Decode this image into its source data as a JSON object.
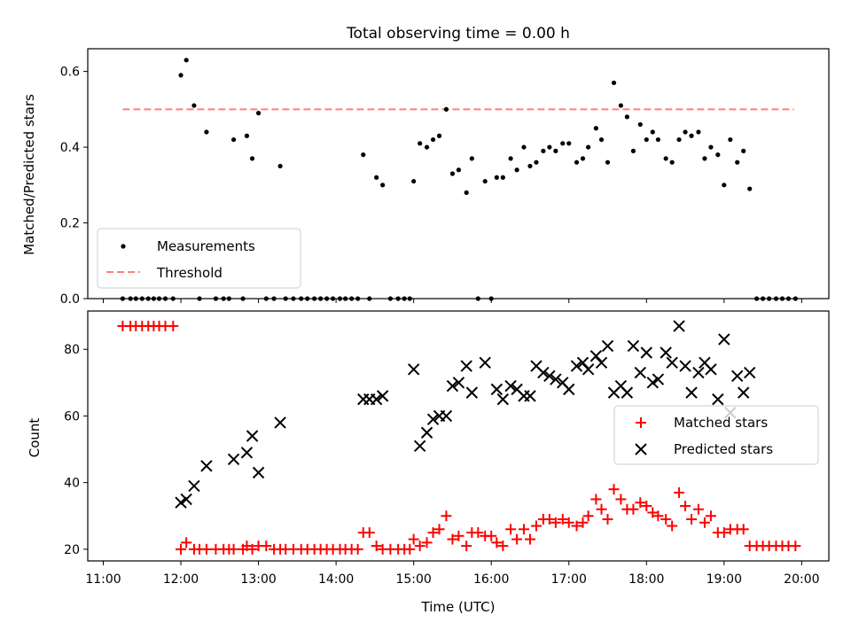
{
  "chart_data": [
    {
      "type": "scatter",
      "title": "Total observing time = 0.00 h",
      "xlabel": "",
      "ylabel": "Matched/Predicted stars",
      "xlim": [
        10.8,
        20.35
      ],
      "ylim": [
        0.0,
        0.66
      ],
      "yticks": [
        "0.0",
        "0.2",
        "0.4",
        "0.6"
      ],
      "legend_position": "lower-left",
      "grid": false,
      "threshold": {
        "name": "Threshold",
        "value": 0.5,
        "x": [
          11.25,
          19.9
        ],
        "color": "#ff7f7f"
      },
      "series": [
        {
          "name": "Measurements",
          "color": "#000000",
          "points": [
            [
              11.25,
              0
            ],
            [
              11.35,
              0
            ],
            [
              11.42,
              0
            ],
            [
              11.5,
              0
            ],
            [
              11.58,
              0
            ],
            [
              11.65,
              0
            ],
            [
              11.72,
              0
            ],
            [
              11.8,
              0
            ],
            [
              11.9,
              0
            ],
            [
              12.0,
              0.59
            ],
            [
              12.07,
              0.63
            ],
            [
              12.17,
              0.51
            ],
            [
              12.24,
              0
            ],
            [
              12.33,
              0.44
            ],
            [
              12.45,
              0
            ],
            [
              12.55,
              0
            ],
            [
              12.62,
              0
            ],
            [
              12.68,
              0.42
            ],
            [
              12.8,
              0
            ],
            [
              12.85,
              0.43
            ],
            [
              12.92,
              0.37
            ],
            [
              13.0,
              0.49
            ],
            [
              13.1,
              0
            ],
            [
              13.2,
              0
            ],
            [
              13.28,
              0.35
            ],
            [
              13.35,
              0
            ],
            [
              13.45,
              0
            ],
            [
              13.55,
              0
            ],
            [
              13.63,
              0
            ],
            [
              13.72,
              0
            ],
            [
              13.8,
              0
            ],
            [
              13.88,
              0
            ],
            [
              13.96,
              0
            ],
            [
              14.05,
              0
            ],
            [
              14.12,
              0
            ],
            [
              14.2,
              0
            ],
            [
              14.28,
              0
            ],
            [
              14.35,
              0.38
            ],
            [
              14.43,
              0
            ],
            [
              14.52,
              0.32
            ],
            [
              14.6,
              0.3
            ],
            [
              14.7,
              0
            ],
            [
              14.8,
              0
            ],
            [
              14.88,
              0
            ],
            [
              14.95,
              0
            ],
            [
              15.0,
              0.31
            ],
            [
              15.08,
              0.41
            ],
            [
              15.17,
              0.4
            ],
            [
              15.25,
              0.42
            ],
            [
              15.33,
              0.43
            ],
            [
              15.42,
              0.5
            ],
            [
              15.5,
              0.33
            ],
            [
              15.58,
              0.34
            ],
            [
              15.68,
              0.28
            ],
            [
              15.75,
              0.37
            ],
            [
              15.83,
              0
            ],
            [
              15.92,
              0.31
            ],
            [
              16.0,
              0
            ],
            [
              16.07,
              0.32
            ],
            [
              16.15,
              0.32
            ],
            [
              16.25,
              0.37
            ],
            [
              16.33,
              0.34
            ],
            [
              16.42,
              0.4
            ],
            [
              16.5,
              0.35
            ],
            [
              16.58,
              0.36
            ],
            [
              16.67,
              0.39
            ],
            [
              16.75,
              0.4
            ],
            [
              16.83,
              0.39
            ],
            [
              16.92,
              0.41
            ],
            [
              17.0,
              0.41
            ],
            [
              17.1,
              0.36
            ],
            [
              17.18,
              0.37
            ],
            [
              17.25,
              0.4
            ],
            [
              17.35,
              0.45
            ],
            [
              17.42,
              0.42
            ],
            [
              17.5,
              0.36
            ],
            [
              17.58,
              0.57
            ],
            [
              17.67,
              0.51
            ],
            [
              17.75,
              0.48
            ],
            [
              17.83,
              0.39
            ],
            [
              17.92,
              0.46
            ],
            [
              18.0,
              0.42
            ],
            [
              18.08,
              0.44
            ],
            [
              18.15,
              0.42
            ],
            [
              18.25,
              0.37
            ],
            [
              18.33,
              0.36
            ],
            [
              18.42,
              0.42
            ],
            [
              18.5,
              0.44
            ],
            [
              18.58,
              0.43
            ],
            [
              18.67,
              0.44
            ],
            [
              18.75,
              0.37
            ],
            [
              18.83,
              0.4
            ],
            [
              18.92,
              0.38
            ],
            [
              19.0,
              0.3
            ],
            [
              19.08,
              0.42
            ],
            [
              19.17,
              0.36
            ],
            [
              19.25,
              0.39
            ],
            [
              19.33,
              0.29
            ],
            [
              19.42,
              0
            ],
            [
              19.5,
              0
            ],
            [
              19.58,
              0
            ],
            [
              19.67,
              0
            ],
            [
              19.75,
              0
            ],
            [
              19.83,
              0
            ],
            [
              19.92,
              0
            ]
          ]
        }
      ]
    },
    {
      "type": "scatter",
      "title": "",
      "xlabel": "Time (UTC)",
      "ylabel": "Count",
      "xlim": [
        10.8,
        20.35
      ],
      "ylim": [
        16.5,
        91.5
      ],
      "xticks": [
        "11:00",
        "12:00",
        "13:00",
        "14:00",
        "15:00",
        "16:00",
        "17:00",
        "18:00",
        "19:00",
        "20:00"
      ],
      "yticks": [
        "20",
        "40",
        "60",
        "80"
      ],
      "legend_position": "center-right",
      "grid": false,
      "series": [
        {
          "name": "Matched stars",
          "marker": "plus",
          "color": "#ff0000",
          "points": [
            [
              11.25,
              87
            ],
            [
              11.35,
              87
            ],
            [
              11.42,
              87
            ],
            [
              11.5,
              87
            ],
            [
              11.58,
              87
            ],
            [
              11.65,
              87
            ],
            [
              11.72,
              87
            ],
            [
              11.8,
              87
            ],
            [
              11.9,
              87
            ],
            [
              12.0,
              20
            ],
            [
              12.07,
              22
            ],
            [
              12.17,
              20
            ],
            [
              12.24,
              20
            ],
            [
              12.33,
              20
            ],
            [
              12.45,
              20
            ],
            [
              12.55,
              20
            ],
            [
              12.62,
              20
            ],
            [
              12.68,
              20
            ],
            [
              12.8,
              20
            ],
            [
              12.85,
              21
            ],
            [
              12.92,
              20
            ],
            [
              13.0,
              21
            ],
            [
              13.1,
              21
            ],
            [
              13.2,
              20
            ],
            [
              13.28,
              20
            ],
            [
              13.35,
              20
            ],
            [
              13.45,
              20
            ],
            [
              13.55,
              20
            ],
            [
              13.63,
              20
            ],
            [
              13.72,
              20
            ],
            [
              13.8,
              20
            ],
            [
              13.88,
              20
            ],
            [
              13.96,
              20
            ],
            [
              14.05,
              20
            ],
            [
              14.12,
              20
            ],
            [
              14.2,
              20
            ],
            [
              14.28,
              20
            ],
            [
              14.35,
              25
            ],
            [
              14.43,
              25
            ],
            [
              14.52,
              21
            ],
            [
              14.6,
              20
            ],
            [
              14.7,
              20
            ],
            [
              14.8,
              20
            ],
            [
              14.88,
              20
            ],
            [
              14.95,
              20
            ],
            [
              15.0,
              23
            ],
            [
              15.08,
              21
            ],
            [
              15.17,
              22
            ],
            [
              15.25,
              25
            ],
            [
              15.33,
              26
            ],
            [
              15.42,
              30
            ],
            [
              15.5,
              23
            ],
            [
              15.58,
              24
            ],
            [
              15.68,
              21
            ],
            [
              15.75,
              25
            ],
            [
              15.83,
              25
            ],
            [
              15.92,
              24
            ],
            [
              16.0,
              24
            ],
            [
              16.07,
              22
            ],
            [
              16.15,
              21
            ],
            [
              16.25,
              26
            ],
            [
              16.33,
              23
            ],
            [
              16.42,
              26
            ],
            [
              16.5,
              23
            ],
            [
              16.58,
              27
            ],
            [
              16.67,
              29
            ],
            [
              16.75,
              29
            ],
            [
              16.83,
              28
            ],
            [
              16.92,
              29
            ],
            [
              17.0,
              28
            ],
            [
              17.1,
              27
            ],
            [
              17.18,
              28
            ],
            [
              17.25,
              30
            ],
            [
              17.35,
              35
            ],
            [
              17.42,
              32
            ],
            [
              17.5,
              29
            ],
            [
              17.58,
              38
            ],
            [
              17.67,
              35
            ],
            [
              17.75,
              32
            ],
            [
              17.83,
              32
            ],
            [
              17.92,
              34
            ],
            [
              18.0,
              33
            ],
            [
              18.08,
              31
            ],
            [
              18.15,
              30
            ],
            [
              18.25,
              29
            ],
            [
              18.33,
              27
            ],
            [
              18.42,
              37
            ],
            [
              18.5,
              33
            ],
            [
              18.58,
              29
            ],
            [
              18.67,
              32
            ],
            [
              18.75,
              28
            ],
            [
              18.83,
              30
            ],
            [
              18.92,
              25
            ],
            [
              19.0,
              25
            ],
            [
              19.08,
              26
            ],
            [
              19.17,
              26
            ],
            [
              19.25,
              26
            ],
            [
              19.33,
              21
            ],
            [
              19.42,
              21
            ],
            [
              19.5,
              21
            ],
            [
              19.58,
              21
            ],
            [
              19.67,
              21
            ],
            [
              19.75,
              21
            ],
            [
              19.83,
              21
            ],
            [
              19.92,
              21
            ]
          ]
        },
        {
          "name": "Predicted stars",
          "marker": "x",
          "color": "#000000",
          "points": [
            [
              12.0,
              34
            ],
            [
              12.07,
              35
            ],
            [
              12.17,
              39
            ],
            [
              12.33,
              45
            ],
            [
              12.68,
              47
            ],
            [
              12.85,
              49
            ],
            [
              12.92,
              54
            ],
            [
              13.0,
              43
            ],
            [
              13.28,
              58
            ],
            [
              14.35,
              65
            ],
            [
              14.43,
              65
            ],
            [
              14.52,
              65
            ],
            [
              14.6,
              66
            ],
            [
              15.0,
              74
            ],
            [
              15.08,
              51
            ],
            [
              15.17,
              55
            ],
            [
              15.25,
              59
            ],
            [
              15.33,
              60
            ],
            [
              15.42,
              60
            ],
            [
              15.5,
              69
            ],
            [
              15.58,
              70
            ],
            [
              15.68,
              75
            ],
            [
              15.75,
              67
            ],
            [
              15.92,
              76
            ],
            [
              16.07,
              68
            ],
            [
              16.15,
              65
            ],
            [
              16.25,
              69
            ],
            [
              16.33,
              68
            ],
            [
              16.42,
              66
            ],
            [
              16.5,
              66
            ],
            [
              16.58,
              75
            ],
            [
              16.67,
              73
            ],
            [
              16.75,
              72
            ],
            [
              16.83,
              71
            ],
            [
              16.92,
              70
            ],
            [
              17.0,
              68
            ],
            [
              17.1,
              75
            ],
            [
              17.18,
              76
            ],
            [
              17.25,
              74
            ],
            [
              17.35,
              78
            ],
            [
              17.42,
              76
            ],
            [
              17.5,
              81
            ],
            [
              17.58,
              67
            ],
            [
              17.67,
              69
            ],
            [
              17.75,
              67
            ],
            [
              17.83,
              81
            ],
            [
              17.92,
              73
            ],
            [
              18.0,
              79
            ],
            [
              18.08,
              70
            ],
            [
              18.15,
              71
            ],
            [
              18.25,
              79
            ],
            [
              18.33,
              76
            ],
            [
              18.42,
              87
            ],
            [
              18.5,
              75
            ],
            [
              18.58,
              67
            ],
            [
              18.67,
              73
            ],
            [
              18.75,
              76
            ],
            [
              18.83,
              74
            ],
            [
              18.92,
              65
            ],
            [
              19.0,
              83
            ],
            [
              19.08,
              61
            ],
            [
              19.17,
              72
            ],
            [
              19.25,
              67
            ],
            [
              19.33,
              73
            ]
          ]
        }
      ]
    }
  ]
}
